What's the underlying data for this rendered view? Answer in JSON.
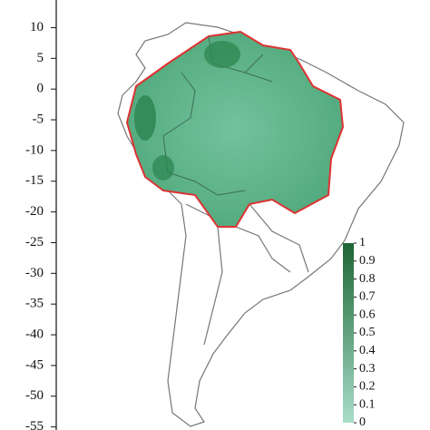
{
  "chart_data": {
    "type": "map",
    "ylim": [
      -55.5,
      14.5
    ],
    "yticks": [
      10,
      5,
      0,
      -5,
      -10,
      -15,
      -20,
      -25,
      -30,
      -35,
      -40,
      -45,
      -50,
      -55
    ],
    "colorbar": {
      "lim": [
        0,
        1
      ],
      "ticks": [
        1,
        0.9,
        0.8,
        0.7,
        0.6,
        0.5,
        0.4,
        0.3,
        0.2,
        0.1,
        0
      ],
      "colors": [
        "#a9ddca",
        "#1d6634"
      ]
    }
  }
}
